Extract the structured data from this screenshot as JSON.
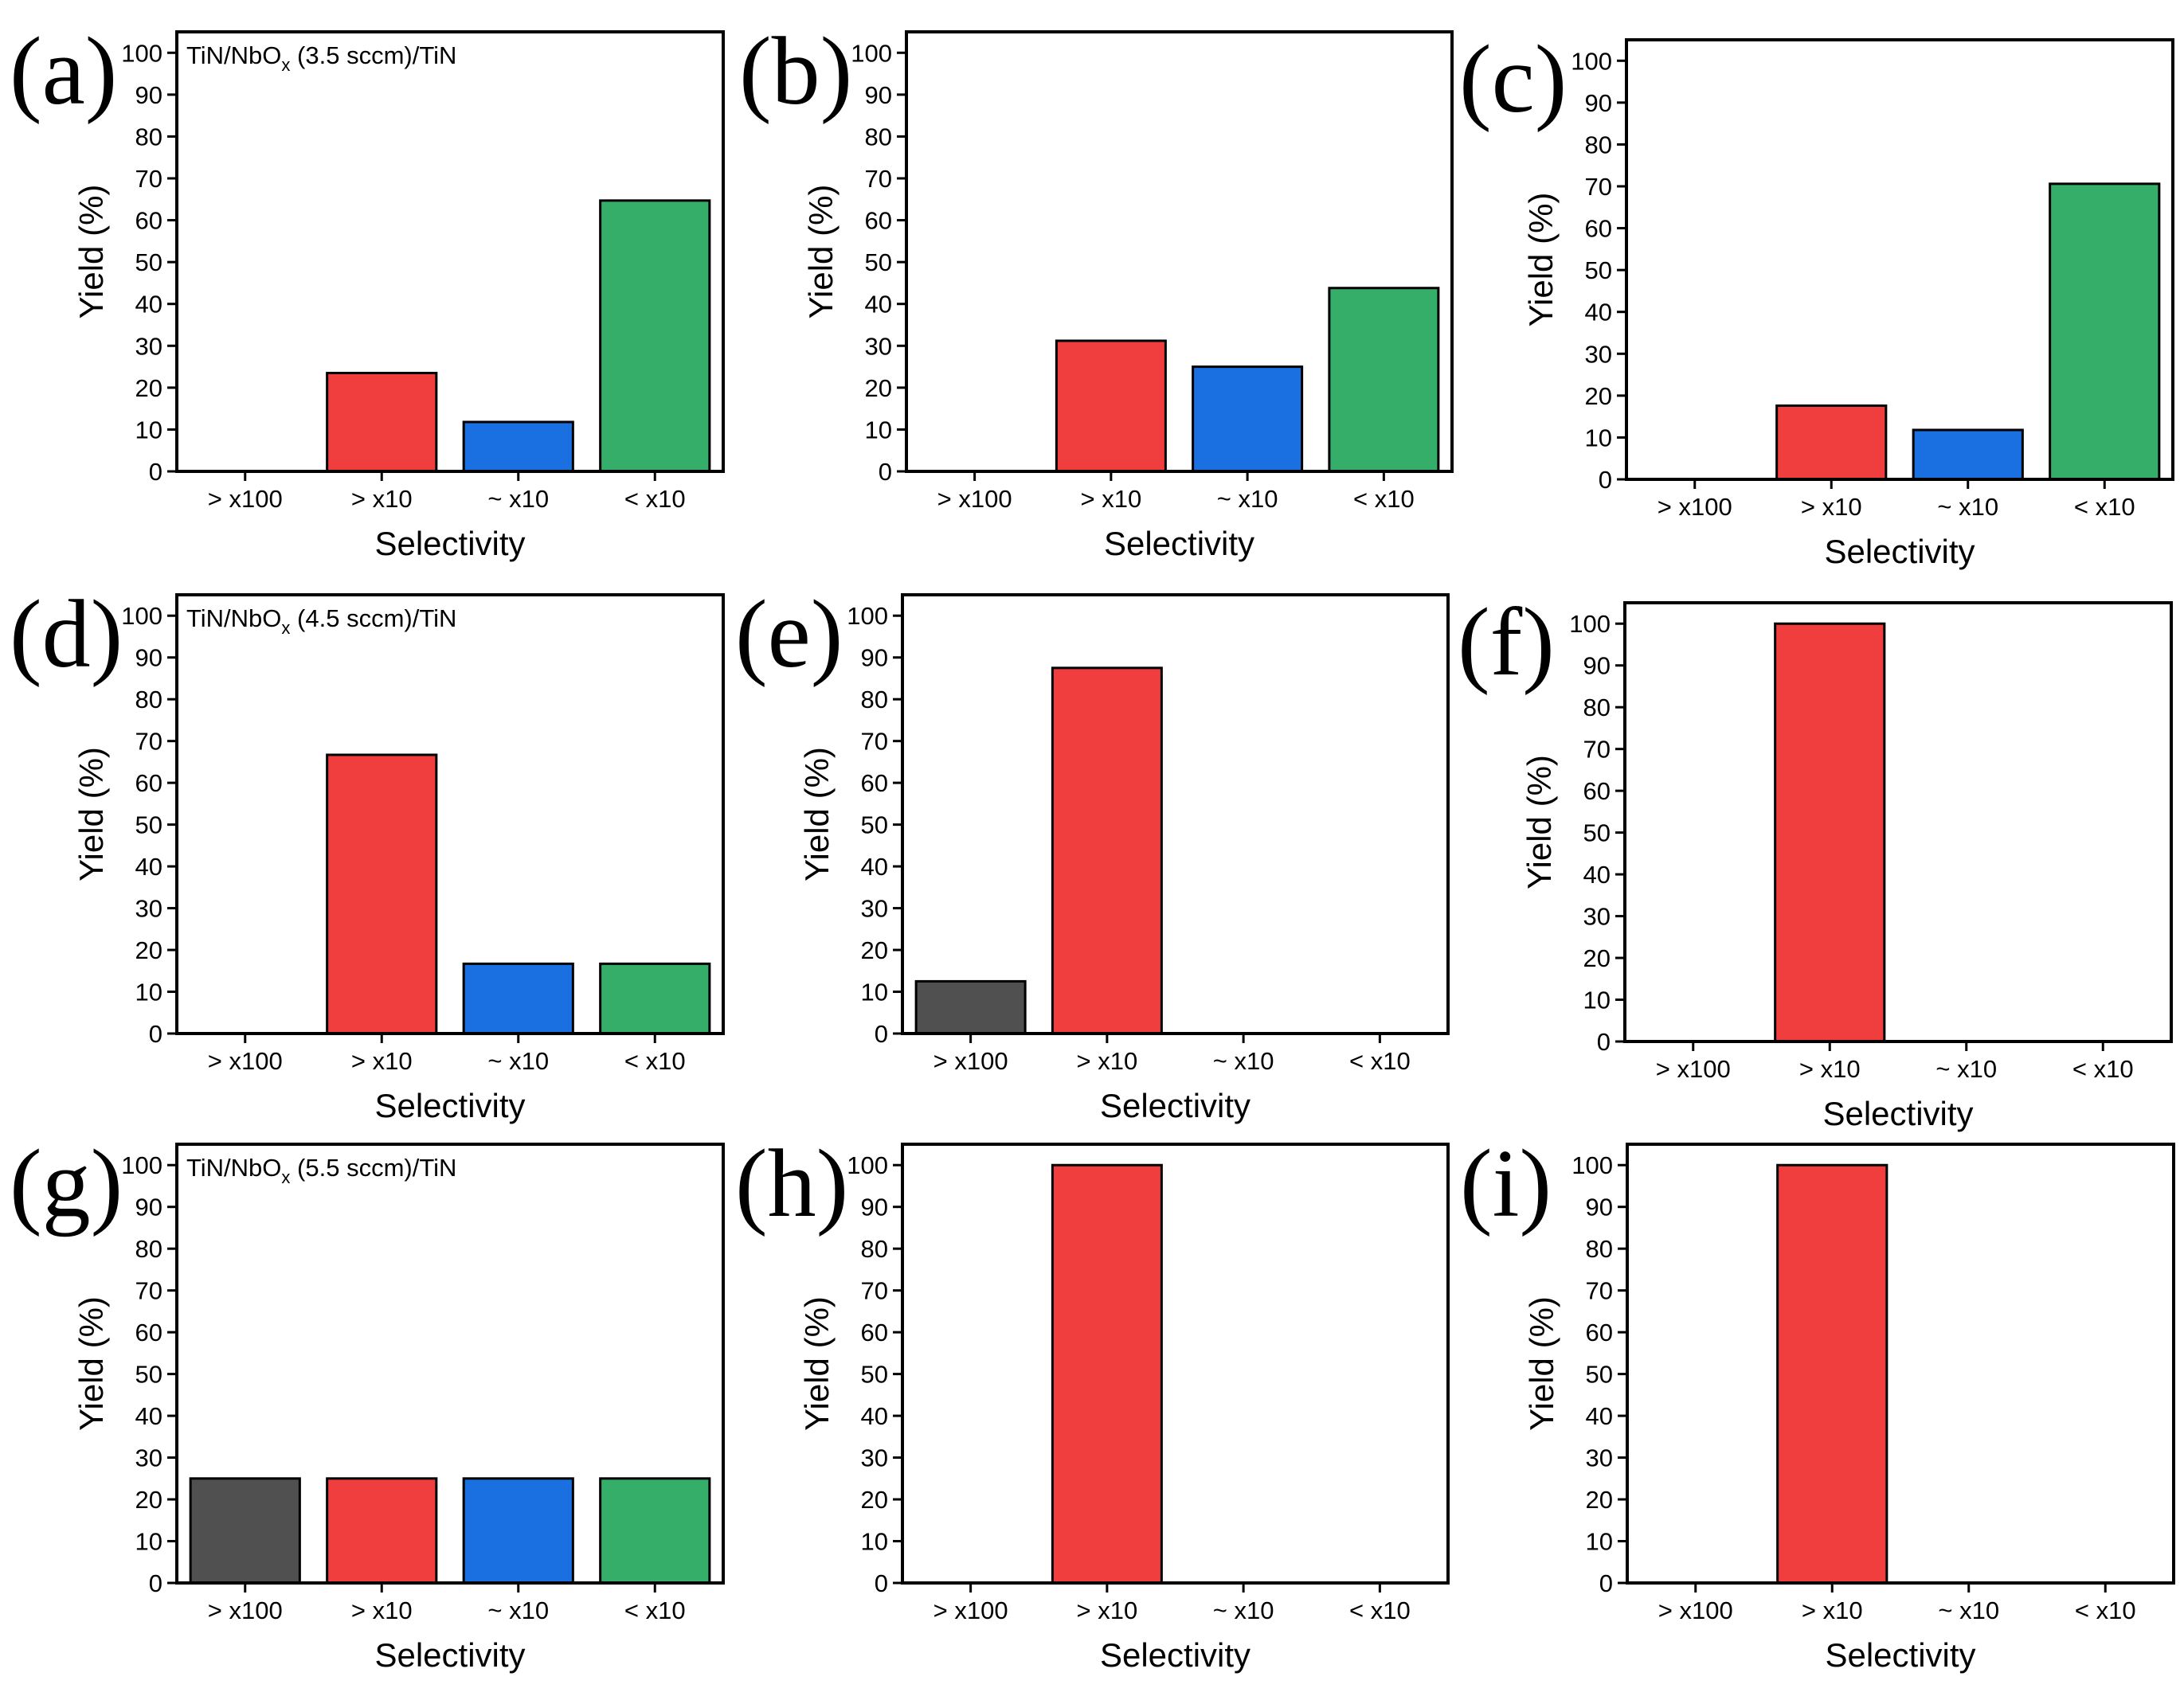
{
  "figure": {
    "categories": [
      "> x100",
      "> x10",
      "~ x10",
      "< x10"
    ],
    "colors": [
      "#505050",
      "#f03e3e",
      "#1a70e0",
      "#35ae6a"
    ],
    "yticks": [
      "0",
      "10",
      "20",
      "30",
      "40",
      "50",
      "60",
      "70",
      "80",
      "90",
      "100"
    ]
  },
  "chart_data": [
    {
      "id": "a",
      "type": "bar",
      "letter": "(a)",
      "annotation": {
        "prefix": "TiN/NbO",
        "sub": "x",
        "suffix": " (3.5 sccm)/TiN"
      },
      "xlabel": "Selectivity",
      "ylabel": "Yield (%)",
      "ylim": [
        0,
        105
      ],
      "categories": [
        "> x100",
        "> x10",
        "~ x10",
        "< x10"
      ],
      "values": [
        0,
        23.5,
        11.8,
        64.7
      ]
    },
    {
      "id": "b",
      "type": "bar",
      "letter": "(b)",
      "xlabel": "Selectivity",
      "ylabel": "Yield (%)",
      "ylim": [
        0,
        105
      ],
      "categories": [
        "> x100",
        "> x10",
        "~ x10",
        "< x10"
      ],
      "values": [
        0,
        31.2,
        25.0,
        43.8
      ]
    },
    {
      "id": "c",
      "type": "bar",
      "letter": "(c)",
      "xlabel": "Selectivity",
      "ylabel": "Yield (%)",
      "ylim": [
        0,
        105
      ],
      "categories": [
        "> x100",
        "> x10",
        "~ x10",
        "< x10"
      ],
      "values": [
        0,
        17.6,
        11.8,
        70.6
      ]
    },
    {
      "id": "d",
      "type": "bar",
      "letter": "(d)",
      "annotation": {
        "prefix": "TiN/NbO",
        "sub": "x",
        "suffix": " (4.5 sccm)/TiN"
      },
      "xlabel": "Selectivity",
      "ylabel": "Yield (%)",
      "ylim": [
        0,
        105
      ],
      "categories": [
        "> x100",
        "> x10",
        "~ x10",
        "< x10"
      ],
      "values": [
        0,
        66.7,
        16.7,
        16.7
      ]
    },
    {
      "id": "e",
      "type": "bar",
      "letter": "(e)",
      "xlabel": "Selectivity",
      "ylabel": "Yield (%)",
      "ylim": [
        0,
        105
      ],
      "categories": [
        "> x100",
        "> x10",
        "~ x10",
        "< x10"
      ],
      "values": [
        12.5,
        87.5,
        0,
        0
      ]
    },
    {
      "id": "f",
      "type": "bar",
      "letter": "(f)",
      "xlabel": "Selectivity",
      "ylabel": "Yield (%)",
      "ylim": [
        0,
        105
      ],
      "categories": [
        "> x100",
        "> x10",
        "~ x10",
        "< x10"
      ],
      "values": [
        0,
        100,
        0,
        0
      ]
    },
    {
      "id": "g",
      "type": "bar",
      "letter": "(g)",
      "annotation": {
        "prefix": "TiN/NbO",
        "sub": "x",
        "suffix": " (5.5 sccm)/TiN"
      },
      "xlabel": "Selectivity",
      "ylabel": "Yield (%)",
      "ylim": [
        0,
        105
      ],
      "categories": [
        "> x100",
        "> x10",
        "~ x10",
        "< x10"
      ],
      "values": [
        25,
        25,
        25,
        25
      ]
    },
    {
      "id": "h",
      "type": "bar",
      "letter": "(h)",
      "xlabel": "Selectivity",
      "ylabel": "Yield (%)",
      "ylim": [
        0,
        105
      ],
      "categories": [
        "> x100",
        "> x10",
        "~ x10",
        "< x10"
      ],
      "values": [
        0,
        100,
        0,
        0
      ]
    },
    {
      "id": "i",
      "type": "bar",
      "letter": "(i)",
      "xlabel": "Selectivity",
      "ylabel": "Yield (%)",
      "ylim": [
        0,
        105
      ],
      "categories": [
        "> x100",
        "> x10",
        "~ x10",
        "< x10"
      ],
      "values": [
        0,
        100,
        0,
        0
      ]
    }
  ]
}
